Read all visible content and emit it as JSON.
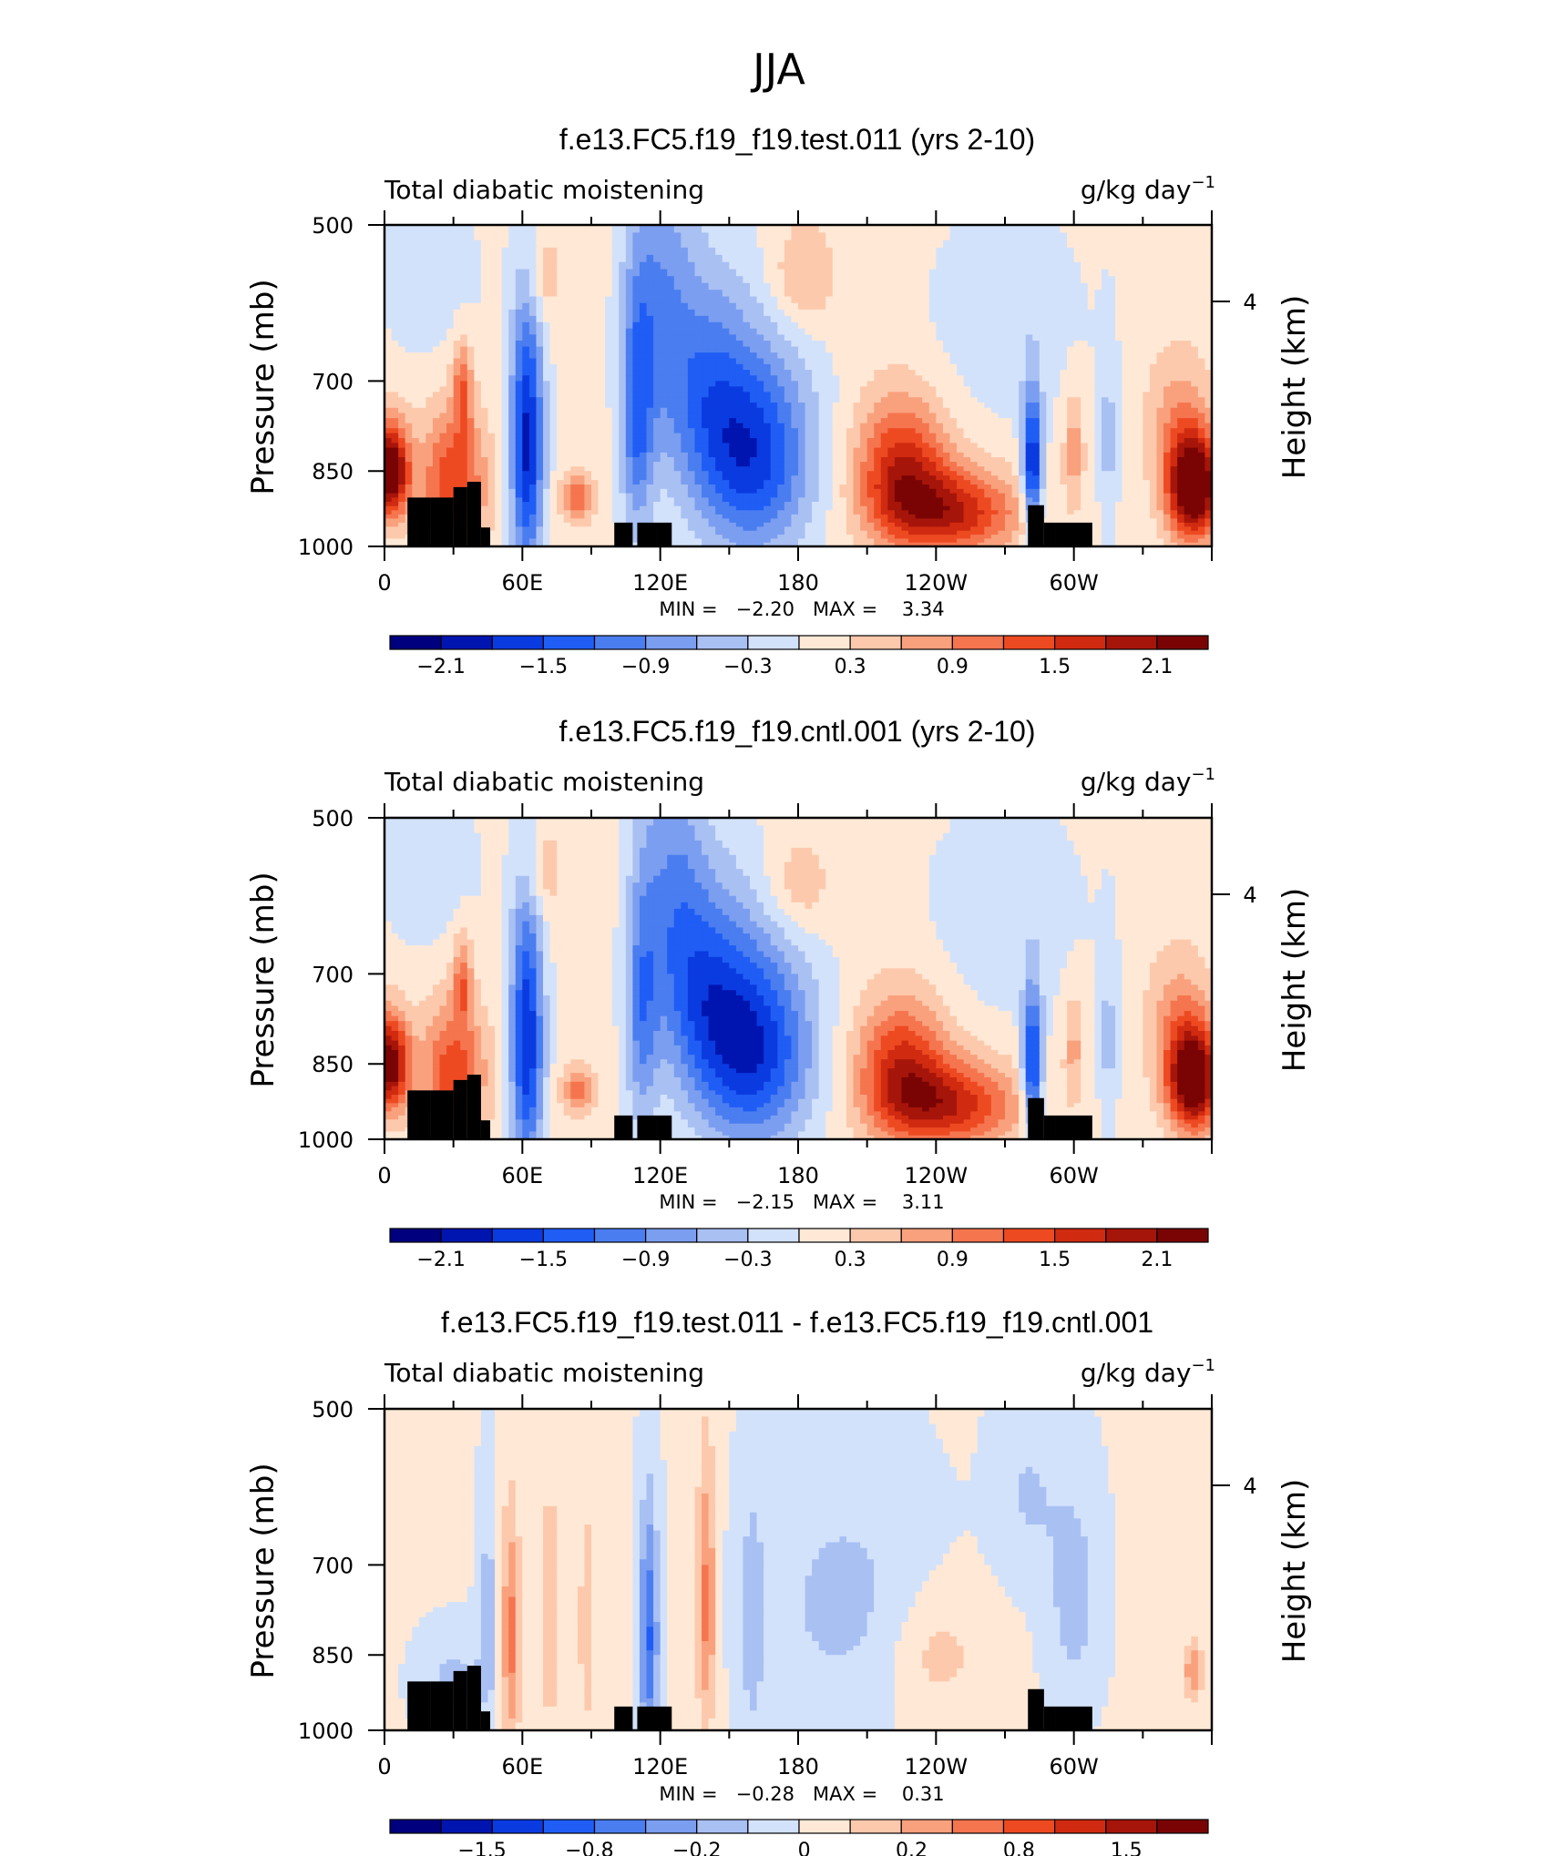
{
  "figure_title": "JJA",
  "colors": {
    "blue_red_scale": [
      "#00007f",
      "#0015b0",
      "#0a3be0",
      "#1f5df5",
      "#4a7df0",
      "#7b9ef0",
      "#a9c0f3",
      "#d3e2fb",
      "#ffe9d6",
      "#fdc9ad",
      "#f9a17d",
      "#f5754f",
      "#ee4a22",
      "#d02a10",
      "#a6150a",
      "#7a0404"
    ]
  },
  "chart_data": [
    {
      "type": "heatmap",
      "title": "f.e13.FC5.f19_f19.test.011 (yrs 2-10)",
      "left_label": "Total diabatic moistening",
      "units_label": "g/kg day",
      "units_exponent": "−1",
      "ylabel": "Pressure (mb)",
      "ylabel_right": "Height (km)",
      "x_ticks": [
        "0",
        "60E",
        "120E",
        "180",
        "120W",
        "60W"
      ],
      "y_ticks": [
        "500",
        "700",
        "850",
        "1000"
      ],
      "y_right_ticks": [
        "4"
      ],
      "stats_text": "MIN =   −2.20   MAX =    3.34",
      "colorbar_labels": [
        "−2.1",
        "−1.5",
        "−0.9",
        "−0.3",
        "0.3",
        "0.9",
        "1.5",
        "2.1"
      ],
      "field": {
        "baseline": 0.1,
        "features": [
          {
            "lon": 2,
            "p": 850,
            "amp": 2.6,
            "wlon": 6,
            "wp": 60
          },
          {
            "lon": 30,
            "p": 870,
            "amp": 1.4,
            "wlon": 10,
            "wp": 90
          },
          {
            "lon": 34,
            "p": 710,
            "amp": 1.0,
            "wlon": 3,
            "wp": 50
          },
          {
            "lon": 62,
            "p": 800,
            "amp": -2.0,
            "wlon": 5,
            "wp": 170
          },
          {
            "lon": 84,
            "p": 900,
            "amp": 1.0,
            "wlon": 5,
            "wp": 35
          },
          {
            "lon": 110,
            "p": 760,
            "amp": -1.2,
            "wlon": 5,
            "wp": 150
          },
          {
            "lon": 120,
            "p": 600,
            "amp": -0.9,
            "wlon": 10,
            "wp": 140
          },
          {
            "lon": 160,
            "p": 820,
            "amp": -1.8,
            "wlon": 18,
            "wp": 130
          },
          {
            "lon": 140,
            "p": 700,
            "amp": -0.8,
            "wlon": 12,
            "wp": 120
          },
          {
            "lon": 182,
            "p": 560,
            "amp": 0.6,
            "wlon": 10,
            "wp": 45
          },
          {
            "lon": 225,
            "p": 850,
            "amp": 1.6,
            "wlon": 14,
            "wp": 90
          },
          {
            "lon": 248,
            "p": 930,
            "amp": 1.6,
            "wlon": 20,
            "wp": 60
          },
          {
            "lon": 282,
            "p": 840,
            "amp": -2.0,
            "wlon": 3,
            "wp": 90
          },
          {
            "lon": 300,
            "p": 810,
            "amp": 0.7,
            "wlon": 3,
            "wp": 70
          },
          {
            "lon": 315,
            "p": 800,
            "amp": -0.5,
            "wlon": 3,
            "wp": 120
          },
          {
            "lon": 352,
            "p": 880,
            "amp": 2.8,
            "wlon": 8,
            "wp": 70
          },
          {
            "lon": 345,
            "p": 760,
            "amp": 0.6,
            "wlon": 10,
            "wp": 80
          },
          {
            "lon": 20,
            "p": 560,
            "amp": -0.3,
            "wlon": 15,
            "wp": 80
          },
          {
            "lon": 270,
            "p": 620,
            "amp": -0.3,
            "wlon": 25,
            "wp": 100
          },
          {
            "lon": 68,
            "p": 560,
            "amp": 0.5,
            "wlon": 6,
            "wp": 40
          }
        ]
      }
    },
    {
      "type": "heatmap",
      "title": "f.e13.FC5.f19_f19.cntl.001 (yrs 2-10)",
      "left_label": "Total diabatic moistening",
      "units_label": "g/kg day",
      "units_exponent": "−1",
      "ylabel": "Pressure (mb)",
      "ylabel_right": "Height (km)",
      "x_ticks": [
        "0",
        "60E",
        "120E",
        "180",
        "120W",
        "60W"
      ],
      "y_ticks": [
        "500",
        "700",
        "850",
        "1000"
      ],
      "y_right_ticks": [
        "4"
      ],
      "stats_text": "MIN =   −2.15   MAX =    3.11",
      "colorbar_labels": [
        "−2.1",
        "−1.5",
        "−0.9",
        "−0.3",
        "0.3",
        "0.9",
        "1.5",
        "2.1"
      ],
      "field": {
        "baseline": 0.1,
        "features": [
          {
            "lon": 2,
            "p": 850,
            "amp": 2.4,
            "wlon": 6,
            "wp": 60
          },
          {
            "lon": 30,
            "p": 870,
            "amp": 1.3,
            "wlon": 10,
            "wp": 90
          },
          {
            "lon": 34,
            "p": 710,
            "amp": 0.9,
            "wlon": 3,
            "wp": 50
          },
          {
            "lon": 62,
            "p": 810,
            "amp": -1.9,
            "wlon": 5,
            "wp": 170
          },
          {
            "lon": 84,
            "p": 900,
            "amp": 0.9,
            "wlon": 5,
            "wp": 35
          },
          {
            "lon": 112,
            "p": 760,
            "amp": -1.0,
            "wlon": 5,
            "wp": 150
          },
          {
            "lon": 125,
            "p": 600,
            "amp": -0.9,
            "wlon": 10,
            "wp": 140
          },
          {
            "lon": 160,
            "p": 820,
            "amp": -1.9,
            "wlon": 18,
            "wp": 130
          },
          {
            "lon": 140,
            "p": 720,
            "amp": -0.9,
            "wlon": 12,
            "wp": 120
          },
          {
            "lon": 180,
            "p": 580,
            "amp": 0.5,
            "wlon": 10,
            "wp": 45
          },
          {
            "lon": 225,
            "p": 860,
            "amp": 1.5,
            "wlon": 14,
            "wp": 90
          },
          {
            "lon": 248,
            "p": 930,
            "amp": 1.5,
            "wlon": 20,
            "wp": 60
          },
          {
            "lon": 282,
            "p": 850,
            "amp": -1.9,
            "wlon": 3,
            "wp": 90
          },
          {
            "lon": 300,
            "p": 820,
            "amp": 0.6,
            "wlon": 3,
            "wp": 70
          },
          {
            "lon": 315,
            "p": 810,
            "amp": -0.5,
            "wlon": 3,
            "wp": 120
          },
          {
            "lon": 352,
            "p": 880,
            "amp": 2.6,
            "wlon": 8,
            "wp": 70
          },
          {
            "lon": 345,
            "p": 770,
            "amp": 0.6,
            "wlon": 10,
            "wp": 80
          },
          {
            "lon": 20,
            "p": 560,
            "amp": -0.3,
            "wlon": 15,
            "wp": 80
          },
          {
            "lon": 270,
            "p": 620,
            "amp": -0.3,
            "wlon": 25,
            "wp": 100
          },
          {
            "lon": 68,
            "p": 560,
            "amp": 0.5,
            "wlon": 6,
            "wp": 40
          }
        ]
      }
    },
    {
      "type": "heatmap",
      "title": "f.e13.FC5.f19_f19.test.011 - f.e13.FC5.f19_f19.cntl.001",
      "left_label": "Total diabatic moistening",
      "units_label": "g/kg day",
      "units_exponent": "−1",
      "ylabel": "Pressure (mb)",
      "ylabel_right": "Height (km)",
      "x_ticks": [
        "0",
        "60E",
        "120E",
        "180",
        "120W",
        "60W"
      ],
      "y_ticks": [
        "500",
        "700",
        "850",
        "1000"
      ],
      "y_right_ticks": [
        "4"
      ],
      "stats_text": "MIN =   −0.28   MAX =    0.31",
      "colorbar_labels": [
        "−1.5",
        "−0.8",
        "−0.2",
        "0",
        "0.2",
        "0.8",
        "1.5"
      ],
      "field": {
        "baseline": 0.02,
        "features": [
          {
            "lon": 55,
            "p": 820,
            "amp": 0.7,
            "wlon": 3,
            "wp": 150
          },
          {
            "lon": 45,
            "p": 780,
            "amp": -0.35,
            "wlon": 3,
            "wp": 130
          },
          {
            "lon": 72,
            "p": 780,
            "amp": 0.45,
            "wlon": 3,
            "wp": 140
          },
          {
            "lon": 88,
            "p": 800,
            "amp": 0.35,
            "wlon": 2.5,
            "wp": 150
          },
          {
            "lon": 115,
            "p": 820,
            "amp": -0.9,
            "wlon": 3,
            "wp": 150
          },
          {
            "lon": 140,
            "p": 760,
            "amp": 0.7,
            "wlon": 3,
            "wp": 160
          },
          {
            "lon": 160,
            "p": 800,
            "amp": -0.3,
            "wlon": 4,
            "wp": 180
          },
          {
            "lon": 200,
            "p": 760,
            "amp": -0.3,
            "wlon": 25,
            "wp": 140
          },
          {
            "lon": 240,
            "p": 850,
            "amp": 0.3,
            "wlon": 15,
            "wp": 80
          },
          {
            "lon": 300,
            "p": 750,
            "amp": -0.35,
            "wlon": 8,
            "wp": 120
          },
          {
            "lon": 352,
            "p": 880,
            "amp": 0.6,
            "wlon": 3,
            "wp": 40
          },
          {
            "lon": 30,
            "p": 900,
            "amp": -0.3,
            "wlon": 10,
            "wp": 60
          },
          {
            "lon": 280,
            "p": 600,
            "amp": -0.25,
            "wlon": 10,
            "wp": 80
          }
        ]
      }
    }
  ]
}
